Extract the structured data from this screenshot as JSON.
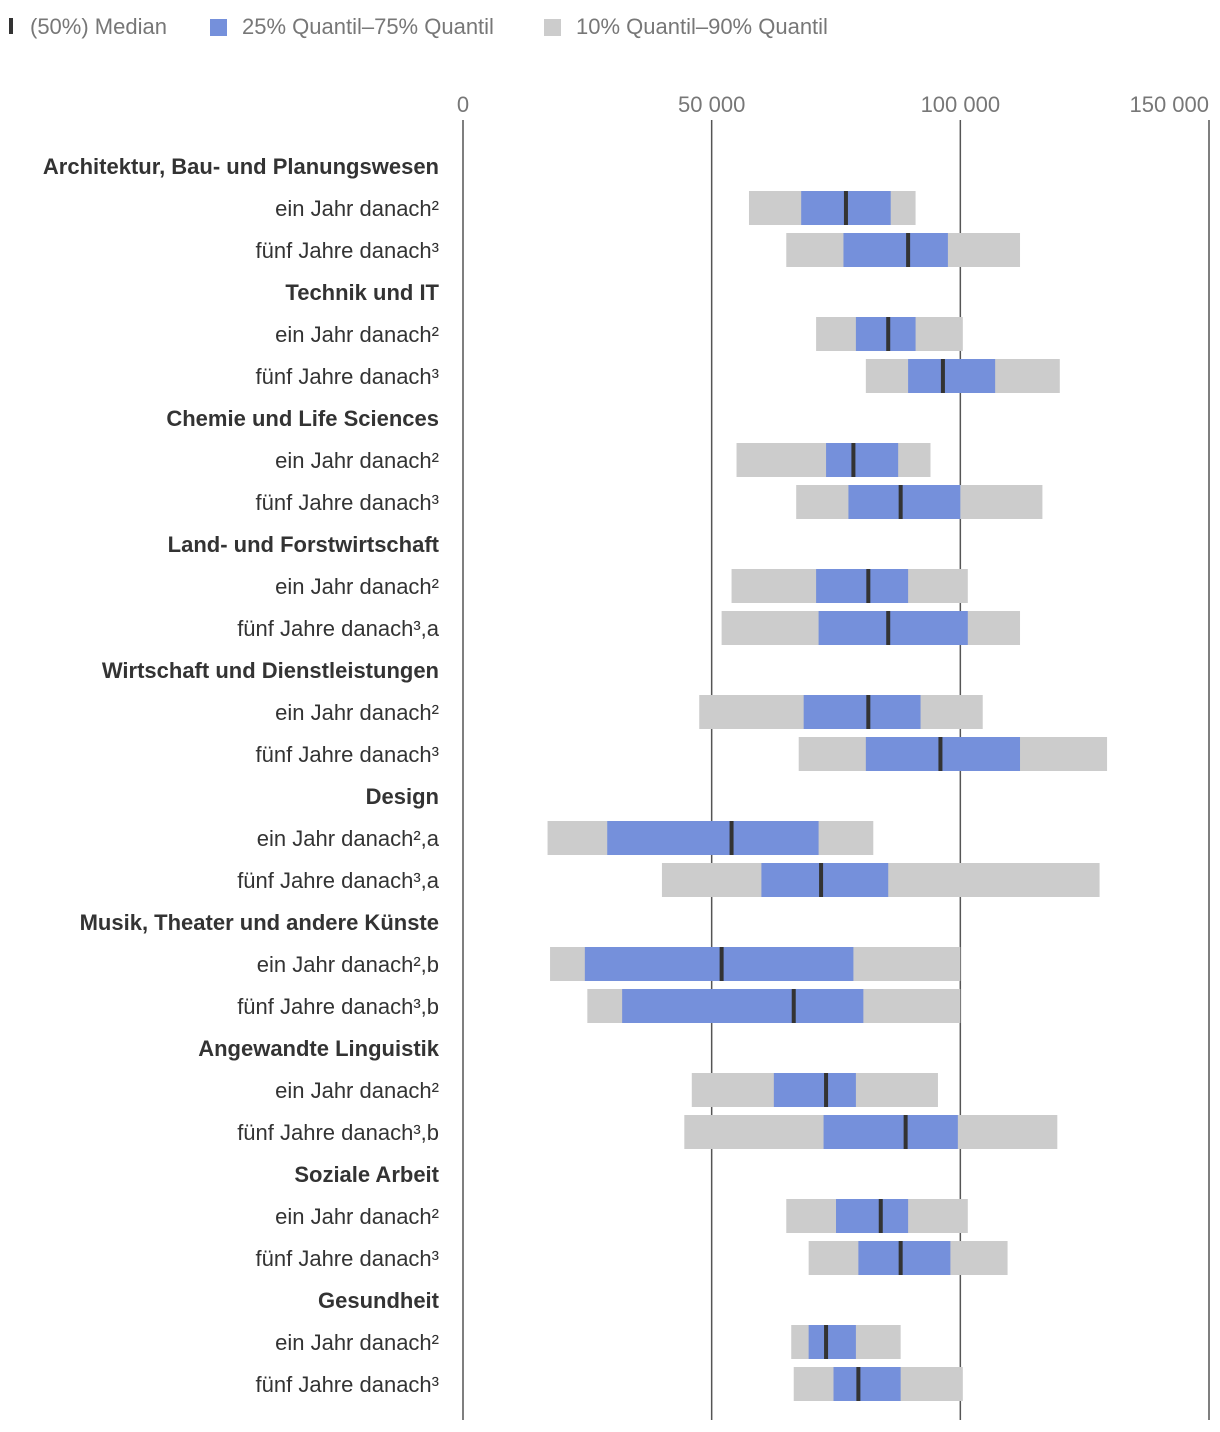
{
  "chart_data": {
    "type": "box-range",
    "colors": {
      "iqr": "#7590db",
      "p10_p90": "#cccccc",
      "median": "#333333",
      "grid": "#555555"
    },
    "legend": [
      {
        "key": "median",
        "label": "(50%) Median"
      },
      {
        "key": "iqr",
        "label": "25% Quantil–75% Quantil"
      },
      {
        "key": "p10_p90",
        "label": "10% Quantil–90% Quantil"
      }
    ],
    "x_axis": {
      "range": [
        0,
        150000
      ],
      "ticks": [
        {
          "value": 0,
          "label": "0"
        },
        {
          "value": 50000,
          "label": "50 000"
        },
        {
          "value": 100000,
          "label": "100 000"
        },
        {
          "value": 150000,
          "label": "150 000"
        }
      ]
    },
    "groups": [
      {
        "name": "Architektur, Bau- und Planungswesen",
        "rows": [
          {
            "label": "ein Jahr danach²",
            "p10": 57500,
            "p25": 68000,
            "median": 77000,
            "p75": 86000,
            "p90": 91000
          },
          {
            "label": "fünf Jahre danach³",
            "p10": 65000,
            "p25": 76500,
            "median": 89500,
            "p75": 97500,
            "p90": 112000
          }
        ]
      },
      {
        "name": "Technik und IT",
        "rows": [
          {
            "label": "ein Jahr danach²",
            "p10": 71000,
            "p25": 79000,
            "median": 85500,
            "p75": 91000,
            "p90": 100500
          },
          {
            "label": "fünf Jahre danach³",
            "p10": 81000,
            "p25": 89500,
            "median": 96500,
            "p75": 107000,
            "p90": 120000
          }
        ]
      },
      {
        "name": "Chemie und Life Sciences",
        "rows": [
          {
            "label": "ein Jahr danach²",
            "p10": 55000,
            "p25": 73000,
            "median": 78500,
            "p75": 87500,
            "p90": 94000
          },
          {
            "label": "fünf Jahre danach³",
            "p10": 67000,
            "p25": 77500,
            "median": 88000,
            "p75": 100000,
            "p90": 116500
          }
        ]
      },
      {
        "name": "Land- und Forstwirtschaft",
        "rows": [
          {
            "label": "ein Jahr danach²",
            "p10": 54000,
            "p25": 71000,
            "median": 81500,
            "p75": 89500,
            "p90": 101500
          },
          {
            "label": "fünf Jahre danach³,a",
            "p10": 52000,
            "p25": 71500,
            "median": 85500,
            "p75": 101500,
            "p90": 112000
          }
        ]
      },
      {
        "name": "Wirtschaft und Dienstleistungen",
        "rows": [
          {
            "label": "ein Jahr danach²",
            "p10": 47500,
            "p25": 68500,
            "median": 81500,
            "p75": 92000,
            "p90": 104500
          },
          {
            "label": "fünf Jahre danach³",
            "p10": 67500,
            "p25": 81000,
            "median": 96000,
            "p75": 112000,
            "p90": 129500
          }
        ]
      },
      {
        "name": "Design",
        "rows": [
          {
            "label": "ein Jahr danach²,a",
            "p10": 17000,
            "p25": 29000,
            "median": 54000,
            "p75": 71500,
            "p90": 82500
          },
          {
            "label": "fünf Jahre danach³,a",
            "p10": 40000,
            "p25": 60000,
            "median": 72000,
            "p75": 85500,
            "p90": 128000
          }
        ]
      },
      {
        "name": "Musik, Theater und andere Künste",
        "rows": [
          {
            "label": "ein Jahr danach²,b",
            "p10": 17500,
            "p25": 24500,
            "median": 52000,
            "p75": 78500,
            "p90": 100000
          },
          {
            "label": "fünf Jahre danach³,b",
            "p10": 25000,
            "p25": 32000,
            "median": 66500,
            "p75": 80500,
            "p90": 100000
          }
        ]
      },
      {
        "name": "Angewandte Linguistik",
        "rows": [
          {
            "label": "ein Jahr danach²",
            "p10": 46000,
            "p25": 62500,
            "median": 73000,
            "p75": 79000,
            "p90": 95500
          },
          {
            "label": "fünf Jahre danach³,b",
            "p10": 44500,
            "p25": 72500,
            "median": 89000,
            "p75": 99500,
            "p90": 119500
          }
        ]
      },
      {
        "name": "Soziale Arbeit",
        "rows": [
          {
            "label": "ein Jahr danach²",
            "p10": 65000,
            "p25": 75000,
            "median": 84000,
            "p75": 89500,
            "p90": 101500
          },
          {
            "label": "fünf Jahre danach³",
            "p10": 69500,
            "p25": 79500,
            "median": 88000,
            "p75": 98000,
            "p90": 109500
          }
        ]
      },
      {
        "name": "Gesundheit",
        "rows": [
          {
            "label": "ein Jahr danach²",
            "p10": 66000,
            "p25": 69500,
            "median": 73000,
            "p75": 79000,
            "p90": 88000
          },
          {
            "label": "fünf Jahre danach³",
            "p10": 66500,
            "p25": 74500,
            "median": 79500,
            "p75": 88000,
            "p90": 100500
          }
        ]
      }
    ]
  }
}
